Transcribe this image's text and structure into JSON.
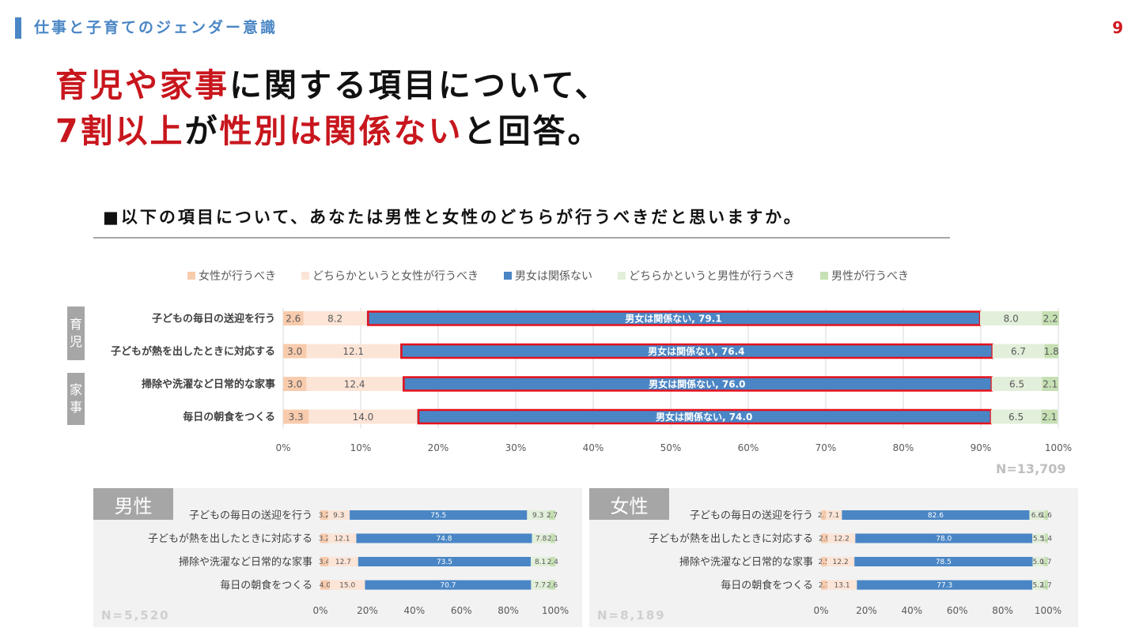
{
  "header": {
    "section_title": "仕事と子育てのジェンダー意識",
    "page_number": "9"
  },
  "headline": {
    "line1_red": "育児や家事",
    "line1_rest": "に関する項目について、",
    "line2_red1": "7割以上",
    "line2_mid": "が",
    "line2_red2": "性別は関係ない",
    "line2_rest": "と回答。"
  },
  "question": "■以下の項目について、あなたは男性と女性のどちらが行うべきだと思いますか。",
  "colors": {
    "female_should": "#f8cbad",
    "rather_female": "#fce4d6",
    "no_matter": "#4a86c5",
    "rather_male": "#e2efda",
    "male_should": "#c6e0b4",
    "highlight": "#e8101a"
  },
  "legend": [
    "女性が行うべき",
    "どちらかというと女性が行うべき",
    "男女は関係ない",
    "どちらかというと男性が行うべき",
    "男性が行うべき"
  ],
  "categories": {
    "childcare": [
      "育",
      "児"
    ],
    "housework": [
      "家",
      "事"
    ]
  },
  "chart_data": [
    {
      "type": "bar",
      "orientation": "horizontal",
      "stacked": true,
      "title": "",
      "categories": [
        "子どもの毎日の送迎を行う",
        "子どもが熱を出したときに対応する",
        "掃除や洗濯など日常的な家事",
        "毎日の朝食をつくる"
      ],
      "series": [
        {
          "name": "女性が行うべき",
          "values": [
            2.6,
            3.0,
            3.0,
            3.3
          ]
        },
        {
          "name": "どちらかというと女性が行うべき",
          "values": [
            8.2,
            12.1,
            12.4,
            14.0
          ]
        },
        {
          "name": "男女は関係ない",
          "values": [
            79.1,
            76.4,
            76.0,
            74.0
          ]
        },
        {
          "name": "どちらかというと男性が行うべき",
          "values": [
            8.0,
            6.7,
            6.5,
            6.5
          ]
        },
        {
          "name": "男性が行うべき",
          "values": [
            2.2,
            1.8,
            2.1,
            2.1
          ]
        }
      ],
      "highlight_label_prefix": "男女は関係ない, ",
      "xticks": [
        "0%",
        "10%",
        "20%",
        "30%",
        "40%",
        "50%",
        "60%",
        "70%",
        "80%",
        "90%",
        "100%"
      ],
      "xlim": [
        0,
        100
      ],
      "grid": true,
      "note": "N=13,709"
    },
    {
      "type": "bar",
      "orientation": "horizontal",
      "stacked": true,
      "title": "男性",
      "categories": [
        "子どもの毎日の送迎を行う",
        "子どもが熱を出したときに対応する",
        "掃除や洗濯など日常的な家事",
        "毎日の朝食をつくる"
      ],
      "series": [
        {
          "name": "女性が行うべき",
          "values": [
            3.2,
            3.2,
            3.4,
            4.0
          ]
        },
        {
          "name": "どちらかというと女性が行うべき",
          "values": [
            9.3,
            12.1,
            12.7,
            15.0
          ]
        },
        {
          "name": "男女は関係ない",
          "values": [
            75.5,
            74.8,
            73.5,
            70.7
          ]
        },
        {
          "name": "どちらかというと男性が行うべき",
          "values": [
            9.3,
            7.8,
            8.1,
            7.7
          ]
        },
        {
          "name": "男性が行うべき",
          "values": [
            2.7,
            2.1,
            2.4,
            2.6
          ]
        }
      ],
      "xticks": [
        "0%",
        "20%",
        "40%",
        "60%",
        "80%",
        "100%"
      ],
      "xlim": [
        0,
        100
      ],
      "note": "N=5,520"
    },
    {
      "type": "bar",
      "orientation": "horizontal",
      "stacked": true,
      "title": "女性",
      "categories": [
        "子どもの毎日の送迎を行う",
        "子どもが熱を出したときに対応する",
        "掃除や洗濯など日常的な家事",
        "毎日の朝食をつくる"
      ],
      "series": [
        {
          "name": "女性が行うべき",
          "values": [
            2.1,
            2.9,
            2.5,
            2.7
          ]
        },
        {
          "name": "どちらかというと女性が行うべき",
          "values": [
            7.1,
            12.2,
            12.2,
            13.1
          ]
        },
        {
          "name": "男女は関係ない",
          "values": [
            82.6,
            78.0,
            78.5,
            77.3
          ]
        },
        {
          "name": "どちらかというと男性が行うべき",
          "values": [
            6.6,
            5.5,
            5.0,
            5.2
          ]
        },
        {
          "name": "男性が行うべき",
          "values": [
            1.6,
            1.4,
            1.7,
            1.7
          ]
        }
      ],
      "xticks": [
        "0%",
        "20%",
        "40%",
        "60%",
        "80%",
        "100%"
      ],
      "xlim": [
        0,
        100
      ],
      "note": "N=8,189"
    }
  ]
}
